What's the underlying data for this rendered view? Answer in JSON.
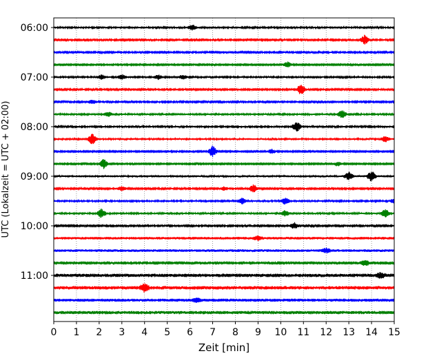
{
  "chart_data": {
    "type": "line",
    "title": "",
    "xlabel": "Zeit  [min]",
    "ylabel": "UTC (Lokalzeit = UTC + 02:00)",
    "xlim": [
      0,
      15
    ],
    "x_ticks": [
      "0",
      "1",
      "2",
      "3",
      "4",
      "5",
      "6",
      "7",
      "8",
      "9",
      "10",
      "11",
      "12",
      "13",
      "14",
      "15"
    ],
    "y_tick_labels": [
      {
        "row": 0,
        "label": "06:00"
      },
      {
        "row": 4,
        "label": "07:00"
      },
      {
        "row": 8,
        "label": "08:00"
      },
      {
        "row": 12,
        "label": "09:00"
      },
      {
        "row": 16,
        "label": "10:00"
      },
      {
        "row": 20,
        "label": "11:00"
      }
    ],
    "vertical_grid": true,
    "trace_colors": [
      "#000000",
      "#ff0000",
      "#0000ff",
      "#008000"
    ],
    "traces": [
      {
        "start": "06:00",
        "color": "#000000",
        "noise": 0.8,
        "events": [
          [
            6.1,
            1.8
          ]
        ]
      },
      {
        "start": "06:15",
        "color": "#ff0000",
        "noise": 0.7,
        "events": [
          [
            13.7,
            3.0
          ]
        ]
      },
      {
        "start": "06:30",
        "color": "#0000ff",
        "noise": 0.7,
        "events": []
      },
      {
        "start": "06:45",
        "color": "#008000",
        "noise": 0.6,
        "events": [
          [
            10.3,
            1.8
          ]
        ]
      },
      {
        "start": "07:00",
        "color": "#000000",
        "noise": 0.8,
        "events": [
          [
            2.1,
            1.4
          ],
          [
            3.0,
            1.5
          ],
          [
            4.6,
            1.4
          ],
          [
            5.7,
            1.4
          ]
        ]
      },
      {
        "start": "07:15",
        "color": "#ff0000",
        "noise": 0.7,
        "events": [
          [
            10.9,
            3.5
          ]
        ]
      },
      {
        "start": "07:30",
        "color": "#0000ff",
        "noise": 0.7,
        "events": [
          [
            1.7,
            1.3
          ]
        ]
      },
      {
        "start": "07:45",
        "color": "#008000",
        "noise": 0.8,
        "events": [
          [
            2.4,
            1.5
          ],
          [
            12.7,
            2.5
          ]
        ]
      },
      {
        "start": "08:00",
        "color": "#000000",
        "noise": 0.8,
        "events": [
          [
            10.7,
            3.2
          ]
        ]
      },
      {
        "start": "08:15",
        "color": "#ff0000",
        "noise": 0.9,
        "events": [
          [
            1.7,
            3.5
          ],
          [
            14.6,
            1.8
          ]
        ]
      },
      {
        "start": "08:30",
        "color": "#0000ff",
        "noise": 0.6,
        "events": [
          [
            7.0,
            3.6
          ],
          [
            9.6,
            1.5
          ]
        ]
      },
      {
        "start": "08:45",
        "color": "#008000",
        "noise": 0.6,
        "events": [
          [
            2.2,
            3.0
          ],
          [
            12.5,
            1.4
          ]
        ]
      },
      {
        "start": "09:00",
        "color": "#000000",
        "noise": 1.0,
        "events": [
          [
            13.0,
            2.5
          ],
          [
            14.0,
            3.2
          ]
        ]
      },
      {
        "start": "09:15",
        "color": "#ff0000",
        "noise": 0.7,
        "events": [
          [
            3.0,
            1.4
          ],
          [
            7.5,
            1.3
          ],
          [
            8.8,
            2.5
          ]
        ]
      },
      {
        "start": "09:30",
        "color": "#0000ff",
        "noise": 0.8,
        "events": [
          [
            8.3,
            1.8
          ],
          [
            10.2,
            2.2
          ],
          [
            15.0,
            1.5
          ]
        ]
      },
      {
        "start": "09:45",
        "color": "#008000",
        "noise": 0.8,
        "events": [
          [
            2.1,
            3.0
          ],
          [
            10.2,
            1.8
          ],
          [
            14.6,
            2.6
          ]
        ]
      },
      {
        "start": "10:00",
        "color": "#000000",
        "noise": 0.7,
        "events": [
          [
            10.6,
            2.0
          ]
        ]
      },
      {
        "start": "10:15",
        "color": "#ff0000",
        "noise": 1.3,
        "events": [
          [
            9.0,
            1.2
          ]
        ]
      },
      {
        "start": "10:30",
        "color": "#0000ff",
        "noise": 1.3,
        "events": [
          [
            12.0,
            1.3
          ]
        ]
      },
      {
        "start": "10:45",
        "color": "#008000",
        "noise": 1.6,
        "events": [
          [
            13.7,
            1.4
          ]
        ]
      },
      {
        "start": "11:00",
        "color": "#000000",
        "noise": 1.7,
        "events": [
          [
            14.4,
            1.5
          ]
        ]
      },
      {
        "start": "11:15",
        "color": "#ff0000",
        "noise": 1.7,
        "events": [
          [
            4.0,
            2.4
          ]
        ]
      },
      {
        "start": "11:30",
        "color": "#0000ff",
        "noise": 1.5,
        "events": [
          [
            6.3,
            1.2
          ]
        ]
      },
      {
        "start": "11:45",
        "color": "#008000",
        "noise": 1.6,
        "events": []
      }
    ]
  }
}
